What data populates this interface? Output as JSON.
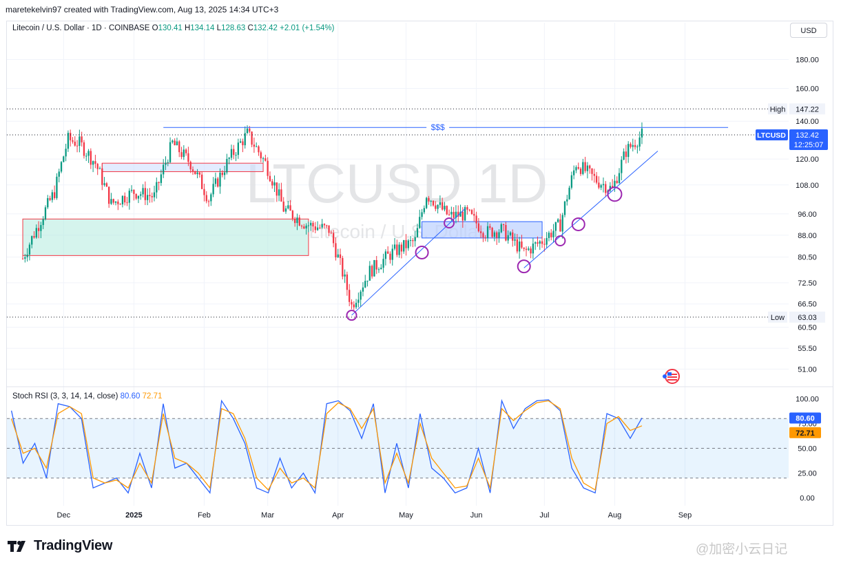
{
  "header": {
    "attribution": "maretekelvin97 created with TradingView.com, Aug 13, 2025 14:34 UTC+3"
  },
  "legend": {
    "symbol": "Litecoin / U.S. Dollar · 1D · COINBASE",
    "open_label": "O",
    "open": "130.41",
    "high_label": "H",
    "high": "134.14",
    "low_label": "L",
    "low": "128.63",
    "close_label": "C",
    "close": "132.42",
    "change": "+2.01 (+1.54%)"
  },
  "currency_button": "USD",
  "watermark": {
    "main": "LTCUSD, 1D",
    "sub": "Litecoin / U.S. Dollar"
  },
  "annotations": {
    "liquidity": "$$$"
  },
  "brand": {
    "name": "TradingView"
  },
  "source_watermark": "@加密小云日记",
  "colors": {
    "up": "#089981",
    "down": "#f23645",
    "trendline": "#2962ff",
    "circle": "#9c27b0",
    "zone_green": "#b2ebdf",
    "zone_blue": "#bbd0ff",
    "rsi_k": "#2962ff",
    "rsi_d": "#ff9800"
  },
  "chart_data": [
    {
      "type": "candlestick",
      "title": "Litecoin / U.S. Dollar · 1D · COINBASE",
      "x_tick_labels": [
        "Dec",
        "2025",
        "Feb",
        "Mar",
        "Apr",
        "May",
        "Jun",
        "Jul",
        "Aug",
        "Sep"
      ],
      "y_tick_labels": [
        "180.00",
        "160.00",
        "140.00",
        "120.00",
        "108.00",
        "96.00",
        "88.00",
        "80.50",
        "72.50",
        "66.50",
        "60.50",
        "55.50",
        "51.00"
      ],
      "y_scale": "log",
      "ylim": [
        48,
        195
      ],
      "markers": {
        "high": {
          "label": "High",
          "value": "147.22"
        },
        "low": {
          "label": "Low",
          "value": "63.03"
        },
        "last": {
          "label": "LTCUSD",
          "value": "132.42",
          "countdown": "12:25:07"
        }
      },
      "series": [
        {
          "name": "LTCUSD",
          "approx_close_path": [
            [
              "2024-11-13",
              80
            ],
            [
              "2024-11-20",
              92
            ],
            [
              "2024-11-27",
              105
            ],
            [
              "2024-12-03",
              130
            ],
            [
              "2024-12-08",
              128
            ],
            [
              "2024-12-15",
              118
            ],
            [
              "2024-12-22",
              100
            ],
            [
              "2025-01-01",
              105
            ],
            [
              "2025-01-10",
              103
            ],
            [
              "2025-01-18",
              128
            ],
            [
              "2025-01-26",
              118
            ],
            [
              "2025-02-03",
              102
            ],
            [
              "2025-02-12",
              120
            ],
            [
              "2025-02-20",
              133
            ],
            [
              "2025-02-28",
              118
            ],
            [
              "2025-03-08",
              98
            ],
            [
              "2025-03-18",
              92
            ],
            [
              "2025-03-28",
              90
            ],
            [
              "2025-04-07",
              66
            ],
            [
              "2025-04-15",
              76
            ],
            [
              "2025-04-25",
              82
            ],
            [
              "2025-05-05",
              86
            ],
            [
              "2025-05-10",
              104
            ],
            [
              "2025-05-20",
              95
            ],
            [
              "2025-05-28",
              96
            ],
            [
              "2025-06-05",
              89
            ],
            [
              "2025-06-12",
              90
            ],
            [
              "2025-06-22",
              82
            ],
            [
              "2025-06-30",
              86
            ],
            [
              "2025-07-08",
              92
            ],
            [
              "2025-07-15",
              118
            ],
            [
              "2025-07-24",
              110
            ],
            [
              "2025-07-31",
              106
            ],
            [
              "2025-08-06",
              124
            ],
            [
              "2025-08-13",
              132.42
            ]
          ]
        }
      ]
    },
    {
      "type": "line",
      "title": "Stoch RSI (3, 3, 14, 14, close)",
      "y_tick_labels": [
        "100.00",
        "75.00",
        "50.00",
        "25.00",
        "0.00"
      ],
      "ylim": [
        -8,
        108
      ],
      "band": [
        20,
        80
      ],
      "series": [
        {
          "name": "K",
          "last": "80.60",
          "values": [
            88,
            35,
            55,
            20,
            95,
            92,
            80,
            10,
            15,
            20,
            5,
            45,
            10,
            95,
            30,
            35,
            20,
            5,
            98,
            80,
            55,
            10,
            5,
            40,
            10,
            25,
            5,
            95,
            98,
            88,
            60,
            95,
            5,
            55,
            10,
            85,
            30,
            20,
            5,
            10,
            50,
            5,
            98,
            70,
            90,
            98,
            99,
            88,
            30,
            10,
            5,
            85,
            80,
            60,
            80.6
          ]
        },
        {
          "name": "D",
          "last": "72.71",
          "values": [
            80,
            45,
            50,
            30,
            85,
            92,
            85,
            20,
            15,
            18,
            10,
            35,
            15,
            85,
            40,
            35,
            25,
            10,
            90,
            85,
            60,
            20,
            8,
            30,
            15,
            20,
            10,
            85,
            96,
            90,
            70,
            90,
            15,
            45,
            15,
            75,
            40,
            25,
            10,
            12,
            40,
            10,
            90,
            78,
            88,
            96,
            98,
            90,
            40,
            15,
            8,
            75,
            82,
            68,
            72.71
          ]
        }
      ]
    }
  ]
}
